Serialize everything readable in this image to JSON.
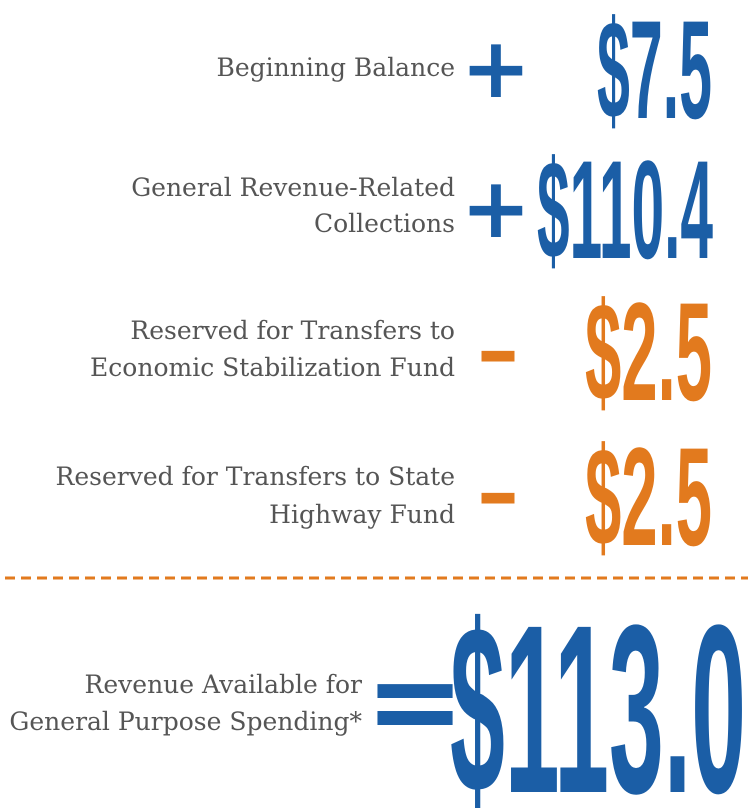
{
  "rows": [
    {
      "label": [
        "Beginning Balance"
      ],
      "operator": "+",
      "amount": "$7.5"
    },
    {
      "label": [
        "General Revenue-Related",
        "Collections"
      ],
      "operator": "+",
      "amount": "$110.4"
    },
    {
      "label": [
        "Reserved for Transfers to",
        "Economic Stabilization Fund"
      ],
      "operator": "–",
      "amount": "$2.5"
    },
    {
      "label": [
        "Reserved for Transfers to State",
        "Highway Fund"
      ],
      "operator": "–",
      "amount": "$2.5"
    }
  ],
  "total": {
    "label": [
      "Revenue Available for",
      "General Purpose Spending*"
    ],
    "operator": "=",
    "amount": "$113.0"
  }
}
